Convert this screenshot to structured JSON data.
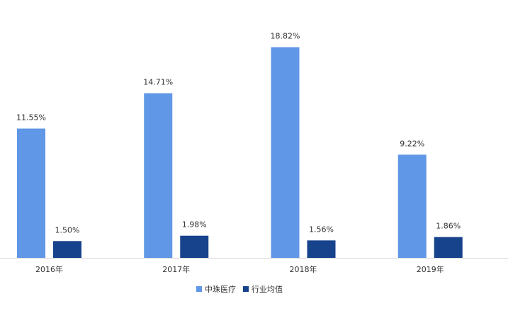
{
  "chart_data": {
    "type": "bar",
    "categories": [
      "2016年",
      "2017年",
      "2018年",
      "2019年"
    ],
    "series": [
      {
        "name": "中珠医疗",
        "values": [
          11.55,
          14.71,
          18.82,
          9.22
        ],
        "labels": [
          "11.55%",
          "14.71%",
          "18.82%",
          "9.22%"
        ],
        "color": "#6097E6"
      },
      {
        "name": "行业均值",
        "values": [
          1.5,
          1.98,
          1.56,
          1.86
        ],
        "labels": [
          "1.50%",
          "1.98%",
          "1.56%",
          "1.86%"
        ],
        "color": "#17428C"
      }
    ],
    "title": "",
    "xlabel": "",
    "ylabel": "",
    "ylim": [
      0,
      20
    ],
    "grid": false,
    "legend_position": "bottom",
    "axis_color": "#D9D9D9"
  }
}
